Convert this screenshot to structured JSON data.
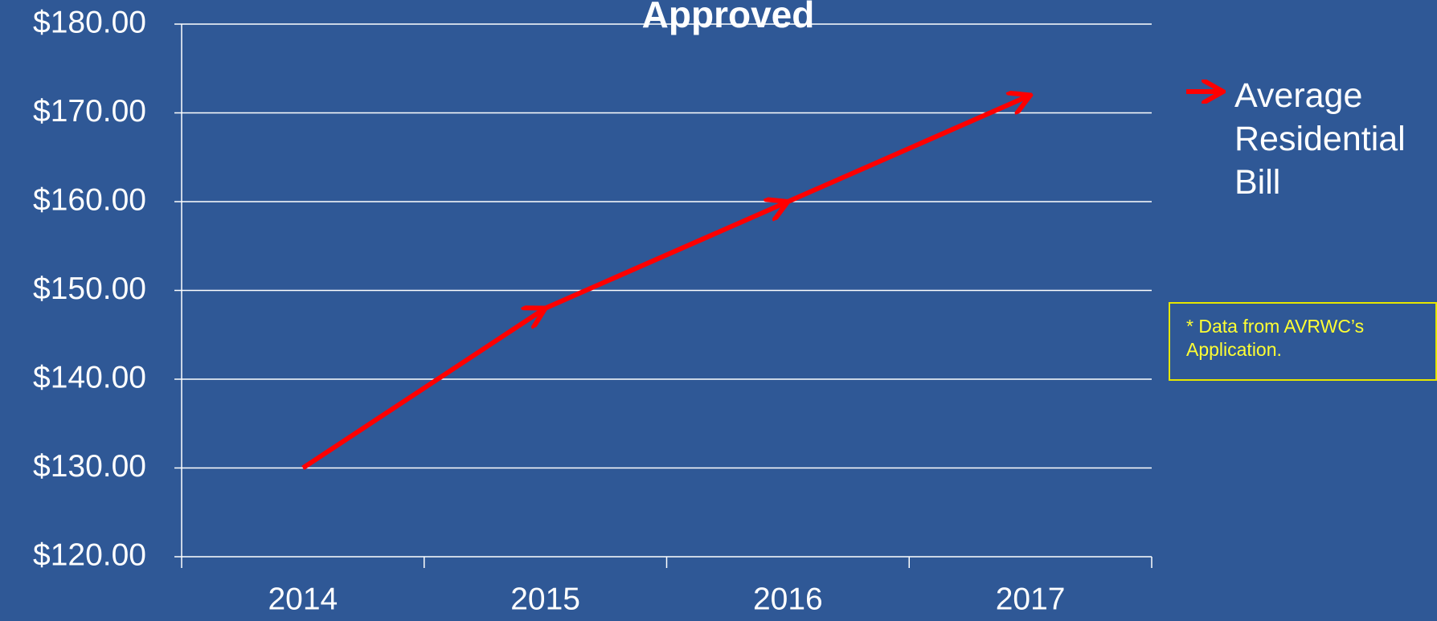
{
  "chart_data": {
    "type": "line",
    "title": "Approved",
    "categories": [
      "2014",
      "2015",
      "2016",
      "2017"
    ],
    "series": [
      {
        "name": "Average Residential Bill",
        "color": "#ff0000",
        "values": [
          130,
          148,
          160,
          172
        ]
      }
    ],
    "ylim": [
      120,
      180
    ],
    "yticks": [
      {
        "value": 120,
        "label": "$120.00"
      },
      {
        "value": 130,
        "label": "$130.00"
      },
      {
        "value": 140,
        "label": "$140.00"
      },
      {
        "value": 150,
        "label": "$150.00"
      },
      {
        "value": 160,
        "label": "$160.00"
      },
      {
        "value": 170,
        "label": "$170.00"
      },
      {
        "value": 180,
        "label": "$180.00"
      }
    ],
    "grid": true,
    "legend": "right",
    "annotation": "* Data from AVRWC’s Application."
  }
}
